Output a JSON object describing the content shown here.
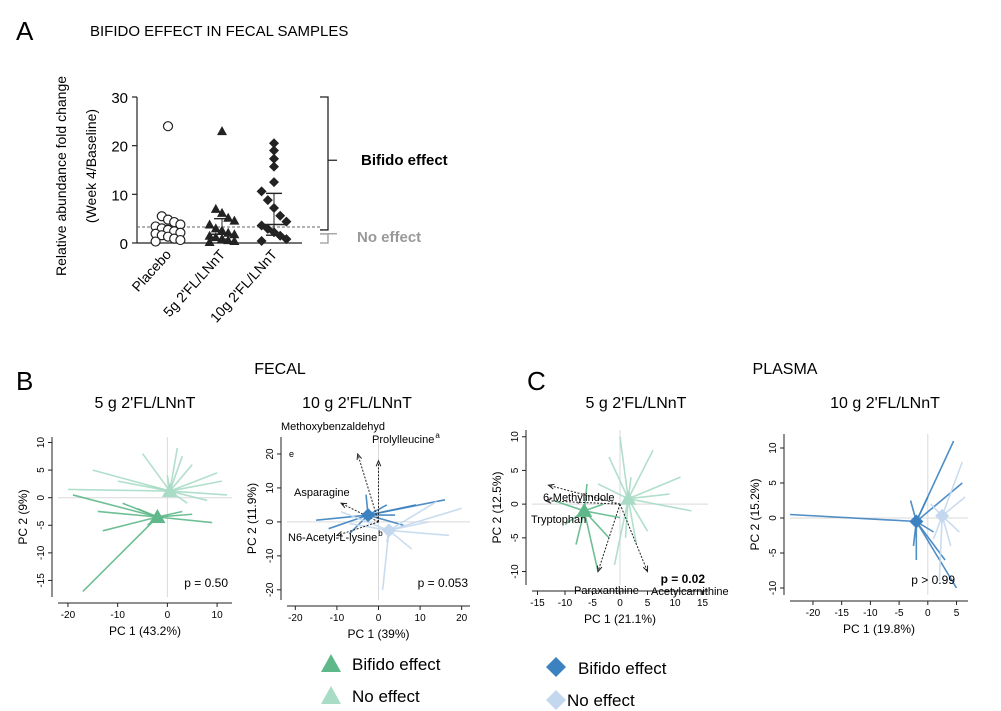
{
  "colors": {
    "green_dark": "#5fb88a",
    "green_light": "#a9dcc6",
    "blue_dark": "#3d82c0",
    "blue_light": "#c3d8ee",
    "axis": "#222222",
    "grey_text": "#999999"
  },
  "panel_letters": {
    "a": "A",
    "b": "B",
    "c": "C"
  },
  "section_titles": {
    "fecal": "FECAL",
    "plasma": "PLASMA"
  },
  "legends": {
    "green": {
      "bifido": "Bifido effect",
      "no_effect": "No effect"
    },
    "blue": {
      "bifido": "Bifido effect",
      "no_effect": "No effect"
    }
  },
  "chart_data": [
    {
      "id": "A",
      "type": "scatter",
      "title": "BIFIDO EFFECT IN FECAL SAMPLES",
      "ylabel_line1": "Relative abundance fold change",
      "ylabel_line2": "(Week 4/Baseline)",
      "categories": [
        "Placebo",
        "5g 2'FL/LNnT",
        "10g 2'FL/LNnT"
      ],
      "ylim": [
        0,
        30
      ],
      "yticks": [
        "0",
        "10",
        "20",
        "30"
      ],
      "threshold": 3.3,
      "bracket_labels": {
        "upper": "Bifido effect",
        "lower": "No effect"
      },
      "series": [
        {
          "marker": "circle-open",
          "median": 2.0,
          "q1": 1.0,
          "q3": 3.6,
          "values": [
            24.0,
            5.5,
            4.8,
            4.3,
            3.8,
            3.4,
            3.0,
            2.7,
            2.4,
            2.1,
            1.9,
            1.6,
            1.3,
            0.9,
            0.6,
            0.3
          ]
        },
        {
          "marker": "triangle",
          "median": 1.8,
          "q1": 0.8,
          "q3": 5.0,
          "values": [
            23.0,
            7.0,
            6.2,
            5.2,
            4.6,
            3.8,
            3.0,
            2.6,
            2.1,
            1.8,
            1.5,
            1.2,
            0.9,
            0.6,
            0.4,
            0.2
          ]
        },
        {
          "marker": "diamond",
          "median": 3.8,
          "q1": 1.6,
          "q3": 10.2,
          "values": [
            20.5,
            19.0,
            17.3,
            15.7,
            12.5,
            10.6,
            8.8,
            7.2,
            5.6,
            4.4,
            3.6,
            2.9,
            2.2,
            1.5,
            0.8,
            0.4
          ]
        }
      ]
    },
    {
      "id": "B1",
      "type": "scatter",
      "title": "5 g 2'FL/LNnT",
      "xlabel": "PC 1 (43.2%)",
      "ylabel": "PC 2 (9%)",
      "xlim": [
        -22,
        13
      ],
      "ylim": [
        -18,
        11
      ],
      "xticks": [
        -20,
        -10,
        0,
        10
      ],
      "yticks": [
        -15,
        -10,
        -5,
        0,
        5,
        10
      ],
      "pvalue": "p = 0.50",
      "groups": [
        {
          "name": "Bifido effect",
          "centroid": [
            -2,
            -3.5
          ],
          "points": [
            [
              -17,
              -17
            ],
            [
              -13,
              -6
            ],
            [
              -19,
              0.5
            ],
            [
              -9,
              -1
            ],
            [
              -14,
              -2.5
            ],
            [
              5,
              -3
            ],
            [
              9,
              -4.5
            ],
            [
              -6,
              -2
            ],
            [
              3,
              -2.5
            ],
            [
              -4,
              -5
            ]
          ]
        },
        {
          "name": "No effect",
          "centroid": [
            0.5,
            1.2
          ],
          "points": [
            [
              -15,
              5
            ],
            [
              -20,
              1.5
            ],
            [
              -10,
              3
            ],
            [
              3,
              7.5
            ],
            [
              11,
              3
            ],
            [
              12,
              0.5
            ],
            [
              5,
              6
            ],
            [
              -5,
              8
            ],
            [
              8,
              -0.5
            ],
            [
              0,
              4
            ],
            [
              -3,
              2
            ],
            [
              4,
              -1
            ],
            [
              2,
              9
            ],
            [
              10,
              4.5
            ]
          ]
        }
      ]
    },
    {
      "id": "B2",
      "type": "scatter",
      "title": "10 g 2'FL/LNnT",
      "xlabel": "PC 1 (39%)",
      "ylabel": "PC 2 (11.9%)",
      "xlim": [
        -22,
        22
      ],
      "ylim": [
        -23,
        25
      ],
      "xticks": [
        -20,
        -10,
        0,
        10,
        20
      ],
      "yticks": [
        -20,
        -10,
        0,
        10,
        20
      ],
      "pvalue": "p = 0.053",
      "corner_label": "e",
      "arrows": [
        {
          "label": "Methoxybenzaldehyd",
          "to": [
            -5,
            20
          ]
        },
        {
          "label": "Prolylleucine",
          "sup": "a",
          "to": [
            0,
            18
          ]
        },
        {
          "label": "Asparagine",
          "to": [
            -9,
            5.5
          ]
        },
        {
          "label": "N6-Acetyl-L-lysine",
          "sup": "b",
          "to": [
            -10,
            -4
          ]
        }
      ],
      "groups": [
        {
          "name": "Bifido effect",
          "centroid": [
            -2.5,
            2
          ],
          "points": [
            [
              -15,
              0.5
            ],
            [
              9,
              5
            ],
            [
              16,
              6.5
            ],
            [
              -7,
              -3.5
            ],
            [
              -12,
              -2
            ],
            [
              4,
              2
            ],
            [
              6,
              -1
            ],
            [
              -3,
              8
            ],
            [
              2,
              5
            ]
          ]
        },
        {
          "name": "No effect",
          "centroid": [
            2.5,
            -2.5
          ],
          "points": [
            [
              20,
              4
            ],
            [
              17,
              -4
            ],
            [
              -7,
              -0.5
            ],
            [
              1,
              -20
            ],
            [
              -9,
              3
            ],
            [
              14,
              6
            ],
            [
              8,
              -8
            ],
            [
              2,
              -6
            ],
            [
              12,
              0
            ]
          ]
        }
      ]
    },
    {
      "id": "C1",
      "type": "scatter",
      "title": "5 g 2'FL/LNnT",
      "xlabel": "PC 1 (21.1%)",
      "ylabel": "PC 2 (12.5%)",
      "xlim": [
        -16,
        16
      ],
      "ylim": [
        -12,
        11
      ],
      "xticks": [
        -15,
        -10,
        -5,
        0,
        5,
        10,
        15
      ],
      "yticks": [
        -10,
        -5,
        0,
        5,
        10
      ],
      "pvalue": "p = 0.02",
      "arrows": [
        {
          "label": "6-Methylindole",
          "to": [
            -13,
            2.8
          ]
        },
        {
          "label": "Tryptophan",
          "to": [
            -13.5,
            0.5
          ]
        },
        {
          "label": "Paraxanthine",
          "to": [
            -4,
            -10
          ]
        },
        {
          "label": "Acetylcarnithine",
          "to": [
            5,
            -10
          ]
        }
      ],
      "groups": [
        {
          "name": "Bifido effect",
          "centroid": [
            -6.5,
            -1
          ],
          "points": [
            [
              -4,
              -10
            ],
            [
              -10,
              -3
            ],
            [
              -12,
              0.5
            ],
            [
              -6,
              3
            ],
            [
              -3,
              0
            ],
            [
              0,
              -2
            ],
            [
              -2,
              -5
            ],
            [
              -8,
              -6
            ]
          ]
        },
        {
          "name": "No effect",
          "centroid": [
            1.5,
            0.8
          ],
          "points": [
            [
              0,
              10
            ],
            [
              6,
              8
            ],
            [
              11,
              4
            ],
            [
              5,
              -4
            ],
            [
              3,
              -6
            ],
            [
              -2,
              7
            ],
            [
              13,
              -1
            ],
            [
              9,
              1.5
            ],
            [
              -4,
              3
            ],
            [
              1,
              -5
            ],
            [
              -1,
              -9
            ],
            [
              2,
              4
            ]
          ]
        }
      ]
    },
    {
      "id": "C2",
      "type": "scatter",
      "title": "10 g 2'FL/LNnT",
      "xlabel": "PC 1 (19.8%)",
      "ylabel": "PC 2 (15.2%)",
      "xlim": [
        -24,
        7
      ],
      "ylim": [
        -11,
        12
      ],
      "xticks": [
        -20,
        -15,
        -10,
        -5,
        0,
        5
      ],
      "yticks": [
        -10,
        -5,
        0,
        5,
        10
      ],
      "pvalue": "p > 0.99",
      "groups": [
        {
          "name": "Bifido effect",
          "centroid": [
            -2,
            -0.5
          ],
          "points": [
            [
              -24,
              0.5
            ],
            [
              4.5,
              11
            ],
            [
              5,
              -10
            ],
            [
              6,
              5
            ],
            [
              -3,
              2.5
            ],
            [
              -2.5,
              -4
            ],
            [
              -2,
              -6
            ],
            [
              0,
              3
            ],
            [
              3,
              -6
            ],
            [
              1,
              -2
            ]
          ]
        },
        {
          "name": "No effect",
          "centroid": [
            2.5,
            0.3
          ],
          "points": [
            [
              6.5,
              3
            ],
            [
              5.5,
              -2
            ],
            [
              2,
              -9
            ],
            [
              6,
              8
            ],
            [
              4,
              -4
            ],
            [
              0.5,
              2
            ],
            [
              1,
              -3
            ]
          ]
        }
      ]
    }
  ]
}
